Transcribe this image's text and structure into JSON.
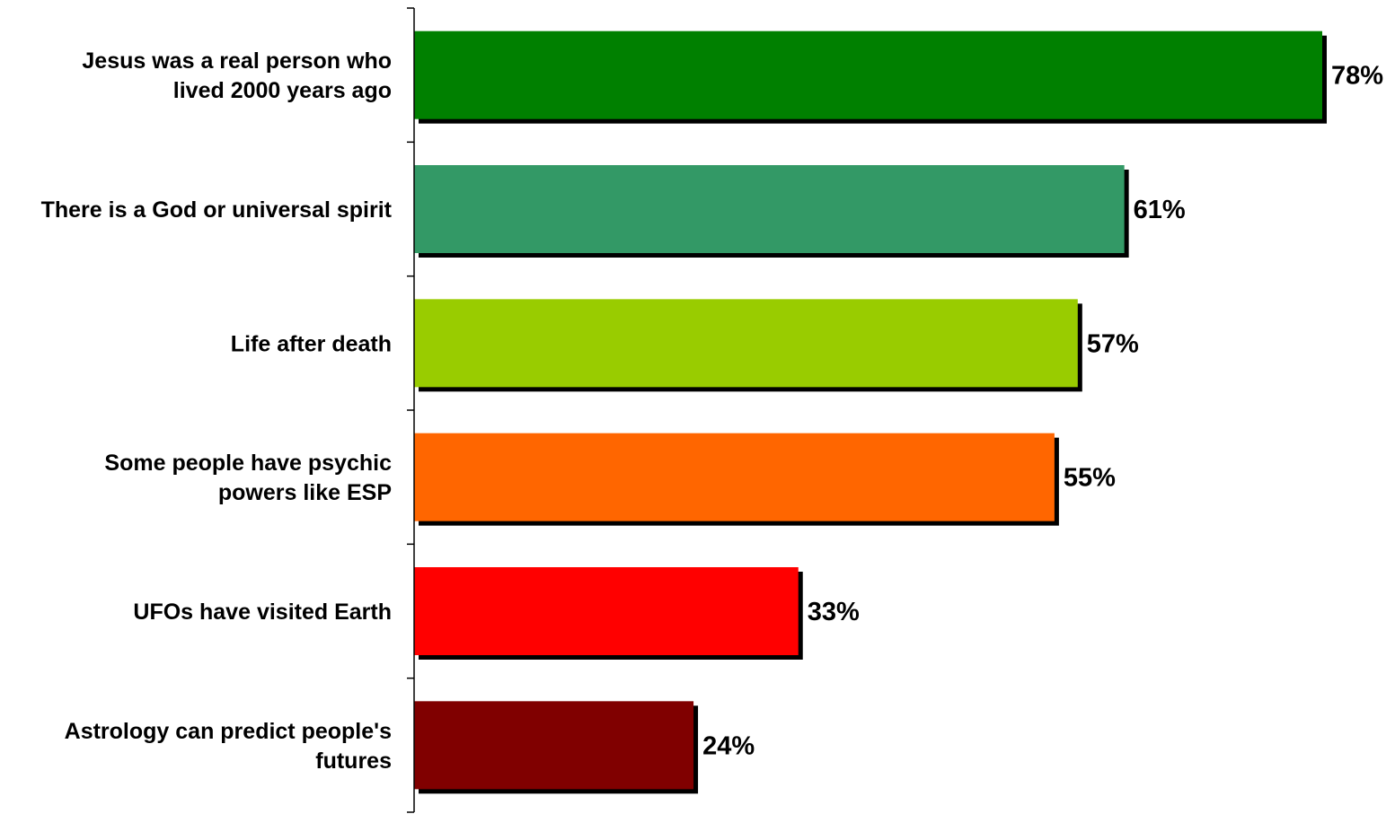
{
  "chart_data": {
    "type": "bar",
    "orientation": "horizontal",
    "categories": [
      [
        "Jesus was a real person who",
        "lived 2000 years ago"
      ],
      [
        "There is a God or universal spirit"
      ],
      [
        "Life after death"
      ],
      [
        "Some people have psychic",
        "powers like ESP"
      ],
      [
        "UFOs have visited Earth"
      ],
      [
        "Astrology can predict people's",
        "futures"
      ]
    ],
    "values": [
      78,
      61,
      57,
      55,
      33,
      24
    ],
    "value_labels": [
      "78%",
      "61%",
      "57%",
      "55%",
      "33%",
      "24%"
    ],
    "colors": [
      "#008000",
      "#339966",
      "#99CC00",
      "#FF6600",
      "#FF0000",
      "#800000"
    ],
    "title": "",
    "xlabel": "",
    "ylabel": "",
    "xlim": [
      0,
      78
    ],
    "grid": false,
    "legend": "none",
    "bar_shadow": true
  }
}
